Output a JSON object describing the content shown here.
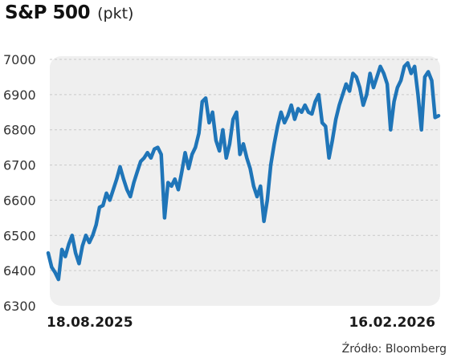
{
  "header": {
    "title": "S&P 500",
    "unit": "(pkt)"
  },
  "source": "Źródło: Bloomberg",
  "colors": {
    "line": "#1f75b8",
    "plot_background": "#efefef",
    "grid": "#c9c9c9"
  },
  "chart_data": {
    "type": "line",
    "title": "S&P 500",
    "ylabel": "(pkt)",
    "xlabel": "",
    "ylim": [
      6300,
      7000
    ],
    "yticks": [
      6300,
      6400,
      6500,
      6600,
      6700,
      6800,
      6900,
      7000
    ],
    "x_start_label": "18.08.2025",
    "x_end_label": "16.02.2026",
    "grid": true,
    "legend": "none",
    "series": [
      {
        "values": [
          6450,
          6410,
          6395,
          6375,
          6460,
          6440,
          6475,
          6500,
          6450,
          6420,
          6470,
          6500,
          6480,
          6500,
          6530,
          6580,
          6585,
          6620,
          6600,
          6630,
          6660,
          6695,
          6660,
          6630,
          6610,
          6650,
          6680,
          6710,
          6720,
          6735,
          6720,
          6745,
          6750,
          6730,
          6550,
          6650,
          6640,
          6660,
          6630,
          6680,
          6735,
          6690,
          6730,
          6750,
          6790,
          6880,
          6890,
          6820,
          6850,
          6770,
          6740,
          6800,
          6720,
          6760,
          6830,
          6850,
          6730,
          6760,
          6720,
          6690,
          6640,
          6610,
          6640,
          6540,
          6600,
          6700,
          6760,
          6810,
          6850,
          6820,
          6840,
          6870,
          6830,
          6860,
          6850,
          6870,
          6850,
          6845,
          6880,
          6900,
          6820,
          6810,
          6720,
          6770,
          6830,
          6870,
          6900,
          6930,
          6910,
          6960,
          6950,
          6920,
          6870,
          6900,
          6960,
          6920,
          6950,
          6980,
          6960,
          6930,
          6800,
          6880,
          6920,
          6940,
          6980,
          6990,
          6960,
          6980,
          6900,
          6800,
          6950,
          6965,
          6940,
          6835,
          6840
        ]
      }
    ]
  }
}
